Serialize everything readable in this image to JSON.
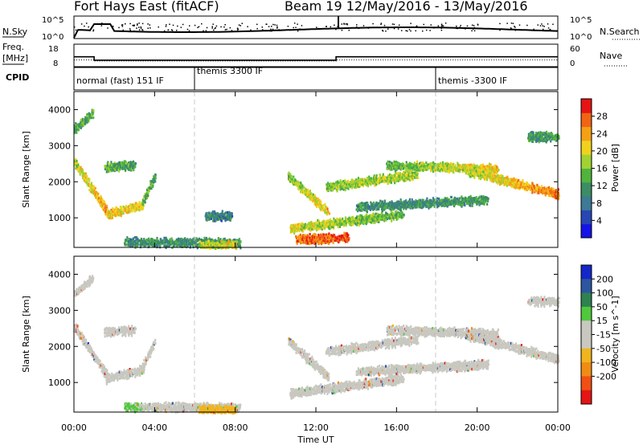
{
  "header": {
    "title_left": "Fort Hays East (fitACF)",
    "title_right": "Beam 19  12/May/2016 - 13/May/2016"
  },
  "strip_labels": {
    "nsky": "N.Sky",
    "nsky_hi": "10^5",
    "nsky_lo": "10^0",
    "nsearch": "N.Search",
    "nsearch_hi": "10^5",
    "nsearch_lo": "10^0",
    "freq": "Freq.",
    "freq_unit": "[MHz]",
    "freq_hi": "18",
    "freq_lo": "8",
    "nave": "Nave",
    "nave_hi": "60",
    "nave_lo": "0",
    "cpid": "CPID"
  },
  "cpid_segments": [
    {
      "label": "normal (fast) 151 IF",
      "start_hour": 0
    },
    {
      "label": "themis 3300 IF",
      "start_hour": 6
    },
    {
      "label": "themis -3300 IF",
      "start_hour": 18
    }
  ],
  "xaxis": {
    "title": "Time UT",
    "ticks": [
      "00:00",
      "04:00",
      "08:00",
      "12:00",
      "16:00",
      "20:00",
      "00:00"
    ],
    "tick_hours": [
      0,
      4,
      8,
      12,
      16,
      20,
      24
    ]
  },
  "colors": {
    "power": [
      "#1414e6",
      "#2846b4",
      "#3c7a96",
      "#3c8c64",
      "#50b43c",
      "#a0d232",
      "#f0d21e",
      "#f5a014",
      "#f06414",
      "#e61414"
    ],
    "velocity": [
      "#1428c8",
      "#2d55a0",
      "#2d8250",
      "#50c83c",
      "#c8c8c0",
      "#c8c8c0",
      "#f0b41e",
      "#f08c14",
      "#f05014",
      "#e61414"
    ]
  },
  "chart_data": [
    {
      "type": "heatmap",
      "name": "power",
      "ylabel": "Slant Range [km]",
      "xlabel": "",
      "ylim": [
        180,
        4500
      ],
      "xlim_hours": [
        0,
        24
      ],
      "yticks": [
        1000,
        2000,
        3000,
        4000
      ],
      "colorbar": {
        "label": "Power [dB]",
        "range": [
          0,
          32
        ],
        "ticks": [
          4,
          8,
          12,
          16,
          20,
          24,
          28
        ]
      },
      "bands": [
        {
          "t0": 0.0,
          "t1": 0.9,
          "r0": 3500,
          "r1": 3950,
          "v0": 12,
          "v1": 14
        },
        {
          "t0": 0.0,
          "t1": 1.6,
          "r0": 2600,
          "r1": 1250,
          "v0": 18,
          "v1": 24
        },
        {
          "t0": 1.6,
          "t1": 3.4,
          "r0": 1150,
          "r1": 1400,
          "v0": 22,
          "v1": 20
        },
        {
          "t0": 3.4,
          "t1": 4.0,
          "r0": 1500,
          "r1": 2200,
          "v0": 16,
          "v1": 12
        },
        {
          "t0": 1.5,
          "t1": 3.0,
          "r0": 2450,
          "r1": 2500,
          "v0": 14,
          "v1": 12
        },
        {
          "t0": 2.5,
          "t1": 8.2,
          "r0": 380,
          "r1": 350,
          "v0": 10,
          "v1": 12
        },
        {
          "t0": 6.5,
          "t1": 7.8,
          "r0": 1100,
          "r1": 1100,
          "v0": 10,
          "v1": 9
        },
        {
          "t0": 6.2,
          "t1": 8.0,
          "r0": 290,
          "r1": 290,
          "v0": 18,
          "v1": 20
        },
        {
          "t0": 10.6,
          "t1": 12.6,
          "r0": 2200,
          "r1": 1200,
          "v0": 16,
          "v1": 22
        },
        {
          "t0": 10.7,
          "t1": 16.3,
          "r0": 750,
          "r1": 1150,
          "v0": 20,
          "v1": 14
        },
        {
          "t0": 11.0,
          "t1": 13.6,
          "r0": 450,
          "r1": 500,
          "v0": 26,
          "v1": 28
        },
        {
          "t0": 12.5,
          "t1": 17.0,
          "r0": 1900,
          "r1": 2250,
          "v0": 16,
          "v1": 18
        },
        {
          "t0": 14.0,
          "t1": 20.5,
          "r0": 1350,
          "r1": 1550,
          "v0": 10,
          "v1": 12
        },
        {
          "t0": 15.5,
          "t1": 21.0,
          "r0": 2500,
          "r1": 2400,
          "v0": 14,
          "v1": 22
        },
        {
          "t0": 19.5,
          "t1": 24.0,
          "r0": 2350,
          "r1": 1700,
          "v0": 18,
          "v1": 26
        },
        {
          "t0": 22.5,
          "t1": 24.0,
          "r0": 3300,
          "r1": 3300,
          "v0": 12,
          "v1": 12
        }
      ]
    },
    {
      "type": "heatmap",
      "name": "velocity",
      "ylabel": "Slant Range [km]",
      "xlabel": "Time UT",
      "ylim": [
        180,
        4500
      ],
      "xlim_hours": [
        0,
        24
      ],
      "yticks": [
        1000,
        2000,
        3000,
        4000
      ],
      "colorbar": {
        "label": "Velocity [m s^-1]",
        "range": [
          -250,
          250
        ],
        "tick_labels": [
          "200",
          "100",
          "50",
          "15",
          "-15",
          "-50",
          "-100",
          "-200"
        ]
      },
      "bands": [
        {
          "t0": 0.0,
          "t1": 0.9,
          "r0": 3500,
          "r1": 3950,
          "v0": 0,
          "v1": 0
        },
        {
          "t0": 0.0,
          "t1": 1.6,
          "r0": 2600,
          "r1": 1250,
          "v0": 0,
          "v1": 0
        },
        {
          "t0": 1.6,
          "t1": 3.4,
          "r0": 1150,
          "r1": 1400,
          "v0": 0,
          "v1": 0
        },
        {
          "t0": 3.4,
          "t1": 4.0,
          "r0": 1500,
          "r1": 2200,
          "v0": 0,
          "v1": 0
        },
        {
          "t0": 1.5,
          "t1": 3.0,
          "r0": 2450,
          "r1": 2500,
          "v0": 0,
          "v1": 0
        },
        {
          "t0": 2.5,
          "t1": 8.2,
          "r0": 380,
          "r1": 350,
          "v0": 60,
          "v1": -40
        },
        {
          "t0": 6.2,
          "t1": 8.0,
          "r0": 290,
          "r1": 290,
          "v0": -60,
          "v1": -70
        },
        {
          "t0": 10.6,
          "t1": 12.6,
          "r0": 2200,
          "r1": 1200,
          "v0": 0,
          "v1": 0
        },
        {
          "t0": 10.7,
          "t1": 16.3,
          "r0": 750,
          "r1": 1150,
          "v0": 0,
          "v1": 0
        },
        {
          "t0": 12.5,
          "t1": 17.0,
          "r0": 1900,
          "r1": 2250,
          "v0": 0,
          "v1": 0
        },
        {
          "t0": 14.0,
          "t1": 20.5,
          "r0": 1350,
          "r1": 1550,
          "v0": 0,
          "v1": 0
        },
        {
          "t0": 15.5,
          "t1": 21.0,
          "r0": 2500,
          "r1": 2400,
          "v0": 0,
          "v1": 0
        },
        {
          "t0": 19.5,
          "t1": 24.0,
          "r0": 2350,
          "r1": 1700,
          "v0": 0,
          "v1": 0
        },
        {
          "t0": 22.5,
          "t1": 24.0,
          "r0": 3300,
          "r1": 3300,
          "v0": 0,
          "v1": 0
        }
      ]
    },
    {
      "type": "line",
      "name": "frequency",
      "ylabel": "Freq. [MHz]",
      "ylim": [
        8,
        18
      ],
      "x_hours": [
        0,
        1.0,
        1.0,
        13.0,
        13.0,
        24
      ],
      "values": [
        12.4,
        12.4,
        10.9,
        10.9,
        12.4,
        12.4
      ]
    },
    {
      "type": "line",
      "name": "nave",
      "ylabel": "Nave",
      "ylim": [
        0,
        60
      ],
      "x_hours": [
        0,
        1.0,
        1.0,
        13.0,
        13.0,
        24
      ],
      "values": [
        18,
        18,
        15,
        15,
        18,
        18
      ]
    }
  ]
}
